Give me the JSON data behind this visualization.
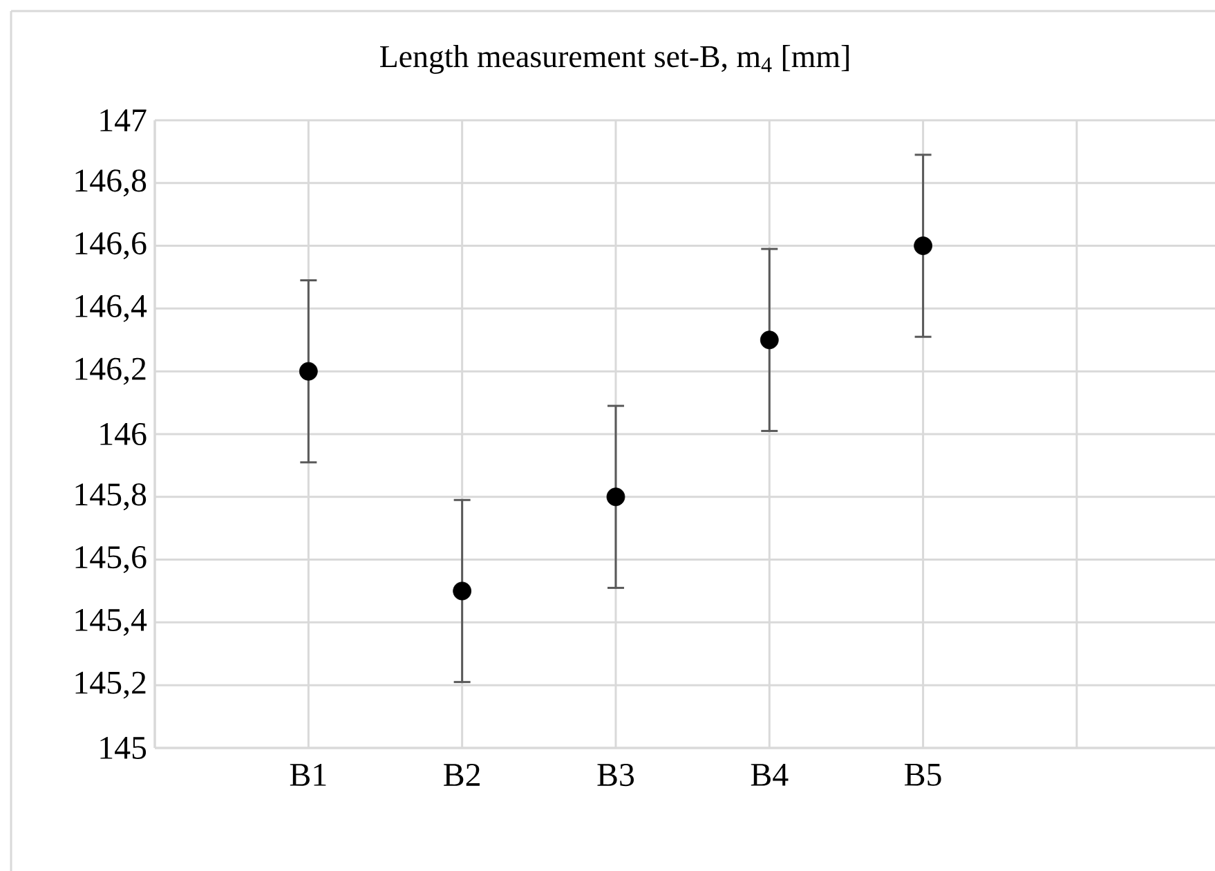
{
  "chart_data": {
    "type": "scatter",
    "title": "Length measurement set-B, m$_{4}$ [mm]",
    "categories": [
      null,
      "B1",
      "B2",
      "B3",
      "B4",
      "B5",
      null
    ],
    "series": [
      {
        "color": "#000000",
        "values": [
          null,
          146.2,
          145.5,
          145.8,
          146.3,
          146.6,
          null
        ],
        "errors": [
          null,
          0.29,
          0.29,
          0.29,
          0.29,
          0.29,
          null
        ]
      }
    ],
    "ylim": [
      145,
      147
    ],
    "yticks": [
      145,
      {
        "value": 145.2,
        "label": "145,2"
      },
      {
        "value": 145.4,
        "label": "145,4"
      },
      {
        "value": 145.6,
        "label": "145,6"
      },
      {
        "value": 145.8,
        "label": "145,8"
      },
      146,
      {
        "value": 146.2,
        "label": "146,2"
      },
      {
        "value": 146.4,
        "label": "146,4"
      },
      {
        "value": 146.6,
        "label": "146,6"
      },
      {
        "value": 146.8,
        "label": "146,8"
      },
      147
    ],
    "grid": true,
    "marker": "circle"
  }
}
